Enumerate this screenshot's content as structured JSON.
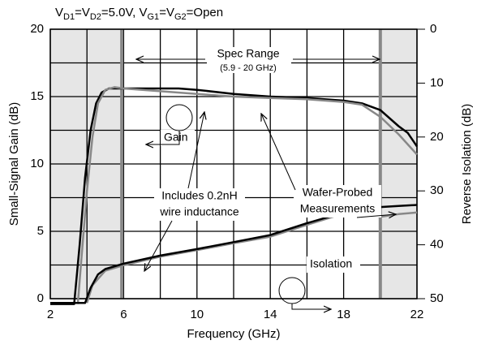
{
  "chart_data": {
    "type": "line",
    "title_segments": [
      "V",
      "D1",
      "=V",
      "D2",
      "=5.0V, V",
      "G1",
      "=V",
      "G2",
      "=Open"
    ],
    "xlabel": "Frequency (GHz)",
    "ylabel": "Small-Signal Gain (dB)",
    "y2label": "Reverse Isolation (dB)",
    "xlim": [
      2,
      22
    ],
    "xticks": [
      2,
      6,
      10,
      14,
      18,
      22
    ],
    "xgrid": [
      4,
      8,
      12,
      16,
      20
    ],
    "ylim": [
      0,
      20
    ],
    "yticks": [
      0,
      5,
      10,
      15,
      20
    ],
    "ygrid": [
      2.5,
      7.5,
      12.5,
      17.5
    ],
    "y2lim": [
      0,
      50
    ],
    "y2ticks": [
      0,
      10,
      20,
      30,
      40,
      50
    ],
    "y2_inverted": true,
    "grid": true,
    "spec_range": [
      5.9,
      20
    ],
    "annotations": {
      "spec": "Spec Range",
      "spec_sub": "(5.9 - 20 GHz)",
      "gain": "Gain",
      "isolation": "Isolation",
      "wafer1": "Wafer-Probed",
      "wafer2": "Measurements",
      "inc1": "Includes 0.2nH",
      "inc2": "wire inductance"
    },
    "series": [
      {
        "color": "#000000",
        "x": [
          2,
          3,
          3.3,
          3.6,
          3.9,
          4.2,
          4.5,
          4.8,
          5.2,
          6,
          8,
          9,
          10,
          12,
          14,
          16,
          18,
          19,
          20,
          21,
          21.5,
          22
        ],
        "values": [
          -0.4,
          -0.4,
          -0.4,
          4,
          9,
          12.5,
          14.5,
          15.3,
          15.6,
          15.6,
          15.6,
          15.6,
          15.5,
          15.2,
          15.0,
          14.9,
          14.7,
          14.5,
          14.0,
          12.8,
          12.3,
          11.3
        ]
      },
      {
        "color": "#888888",
        "x": [
          3.5,
          3.7,
          4,
          4.3,
          4.6,
          5,
          5.5,
          6,
          8,
          10,
          12,
          14,
          16,
          18,
          19,
          20,
          21,
          22
        ],
        "values": [
          -0.4,
          3,
          8,
          12,
          14.5,
          15.5,
          15.7,
          15.6,
          15.4,
          15.2,
          15.0,
          14.9,
          14.8,
          14.6,
          14.4,
          13.5,
          12.2,
          10.7
        ]
      },
      {
        "color": "#888888",
        "axis": "y2",
        "x": [
          4,
          4.3,
          5,
          6,
          8,
          10,
          12,
          14,
          16,
          18,
          20,
          21,
          22
        ],
        "values": [
          50.8,
          47.5,
          44.8,
          43.8,
          42.2,
          41,
          39.7,
          38.5,
          36.3,
          34.2,
          34.8,
          34.3,
          34.0
        ]
      },
      {
        "color": "#000000",
        "axis": "y2",
        "x": [
          2,
          3.9,
          4.2,
          4.6,
          5,
          6,
          8,
          10,
          12,
          14,
          16,
          18,
          19,
          20,
          21,
          22
        ],
        "values": [
          50.8,
          50.8,
          48,
          45.5,
          44.5,
          43.5,
          42,
          40.8,
          39.5,
          38.2,
          36,
          34,
          33.2,
          33.0,
          32.8,
          32.6
        ]
      }
    ]
  }
}
